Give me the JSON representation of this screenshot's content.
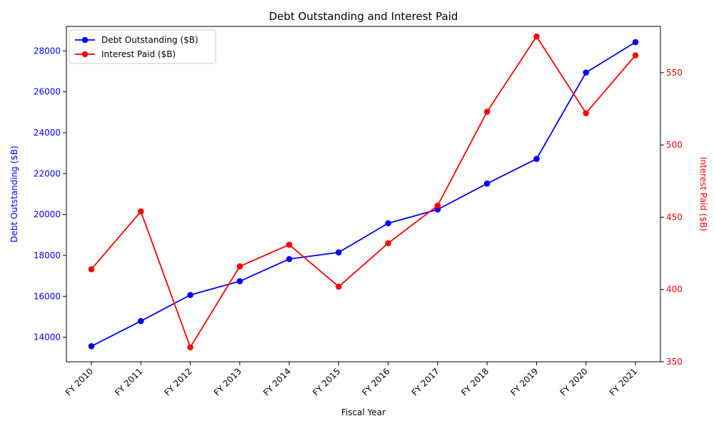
{
  "chart_data": {
    "type": "line",
    "title": "Debt Outstanding and Interest Paid",
    "xlabel": "Fiscal Year",
    "categories": [
      "FY 2010",
      "FY 2011",
      "FY 2012",
      "FY 2013",
      "FY 2014",
      "FY 2015",
      "FY 2016",
      "FY 2017",
      "FY 2018",
      "FY 2019",
      "FY 2020",
      "FY 2021"
    ],
    "y_left": {
      "label": "Debt Outstanding ($B)",
      "range": [
        12800,
        29200
      ],
      "ticks": [
        14000,
        16000,
        18000,
        20000,
        22000,
        24000,
        26000,
        28000
      ],
      "color": "#0000ff"
    },
    "y_right": {
      "label": "Interest Paid ($B)",
      "range": [
        350,
        582
      ],
      "ticks": [
        350,
        400,
        450,
        500,
        550
      ],
      "color": "#ff0000"
    },
    "series": [
      {
        "name": "Debt Outstanding ($B)",
        "axis": "left",
        "color": "#0000ff",
        "values": [
          13562,
          14790,
          16066,
          16738,
          17824,
          18151,
          19573,
          20245,
          21516,
          22719,
          26945,
          28429
        ]
      },
      {
        "name": "Interest Paid ($B)",
        "axis": "right",
        "color": "#ff0000",
        "values": [
          414,
          454,
          360,
          416,
          431,
          402,
          432,
          458,
          523,
          575,
          522,
          562
        ]
      }
    ],
    "legend": "top-left",
    "grid": false
  }
}
